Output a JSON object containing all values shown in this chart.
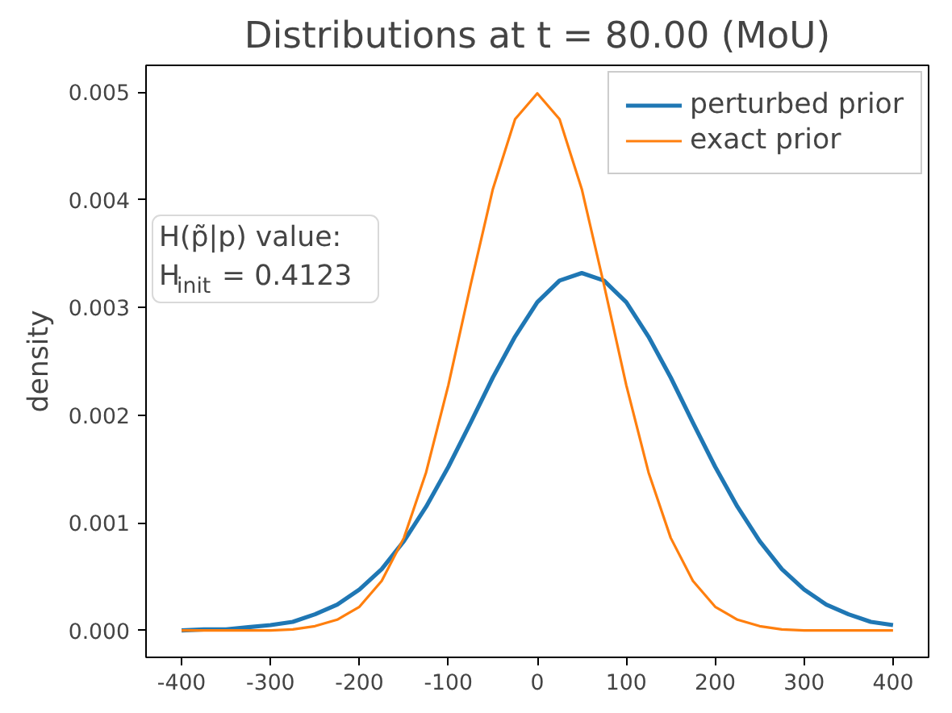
{
  "chart_data": {
    "type": "line",
    "title": "Distributions at t = 80.00 (MoU)",
    "ylabel": "density",
    "x": [
      -400,
      -375,
      -350,
      -325,
      -300,
      -275,
      -250,
      -225,
      -200,
      -175,
      -150,
      -125,
      -100,
      -75,
      -50,
      -25,
      0,
      25,
      50,
      75,
      100,
      125,
      150,
      175,
      200,
      225,
      250,
      275,
      300,
      325,
      350,
      375,
      400
    ],
    "series": [
      {
        "name": "perturbed prior",
        "color": "#1f77b4",
        "values": [
          0,
          1e-05,
          1e-05,
          3e-05,
          5e-05,
          8e-05,
          0.00015,
          0.00024,
          0.00038,
          0.00057,
          0.00083,
          0.00115,
          0.00152,
          0.00193,
          0.00235,
          0.00273,
          0.00305,
          0.00325,
          0.00332,
          0.00325,
          0.00305,
          0.00273,
          0.00235,
          0.00193,
          0.00152,
          0.00115,
          0.00083,
          0.00057,
          0.00038,
          0.00024,
          0.00015,
          8e-05,
          5e-05
        ]
      },
      {
        "name": "exact prior",
        "color": "#ff7f0e",
        "values": [
          0,
          0,
          0,
          0,
          0,
          1e-05,
          4e-05,
          0.0001,
          0.00022,
          0.00046,
          0.00086,
          0.00147,
          0.00228,
          0.00321,
          0.0041,
          0.00475,
          0.00499,
          0.00475,
          0.0041,
          0.00321,
          0.00228,
          0.00147,
          0.00086,
          0.00046,
          0.00022,
          0.0001,
          4e-05,
          1e-05,
          0,
          0,
          0,
          0,
          0
        ]
      }
    ],
    "xlim": [
      -440,
      440
    ],
    "ylim": [
      -0.00025,
      0.00525
    ],
    "xticks": [
      -400,
      -300,
      -200,
      -100,
      0,
      100,
      200,
      300,
      400
    ],
    "yticks": [
      {
        "value": 0,
        "label": "0.000"
      },
      {
        "value": 0.001,
        "label": "0.001"
      },
      {
        "value": 0.002,
        "label": "0.002"
      },
      {
        "value": 0.003,
        "label": "0.003"
      },
      {
        "value": 0.004,
        "label": "0.004"
      },
      {
        "value": 0.005,
        "label": "0.005"
      }
    ],
    "annotations": [
      "H(p̃|p) value:",
      "H$_{init}$ = 0.4123"
    ],
    "legend": "top right",
    "grid": false,
    "line_style": "solid",
    "marker": "none"
  }
}
